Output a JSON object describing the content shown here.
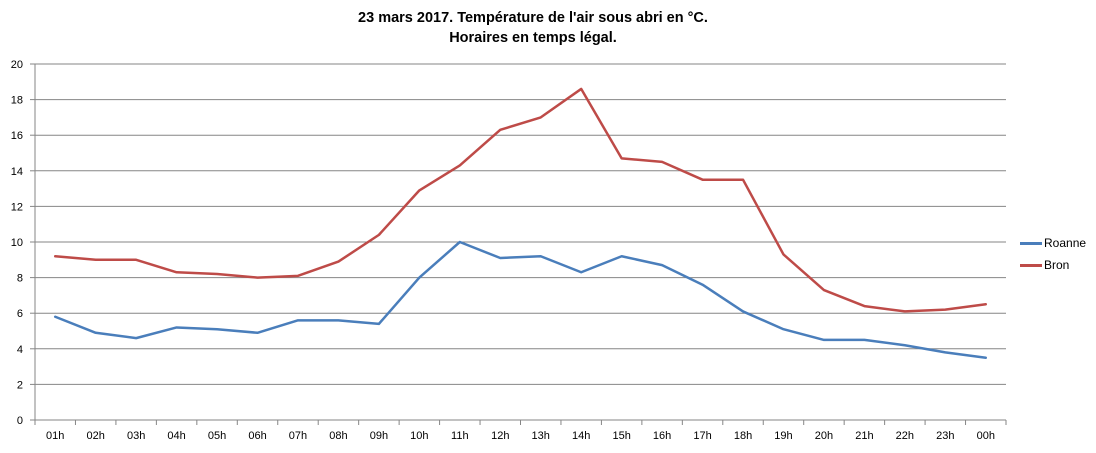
{
  "chart_data": {
    "type": "line",
    "title_line1": "23 mars 2017. Température de l'air sous abri en °C.",
    "title_line2": "Horaires en temps légal.",
    "xlabel": "",
    "ylabel": "",
    "categories": [
      "01h",
      "02h",
      "03h",
      "04h",
      "05h",
      "06h",
      "07h",
      "08h",
      "09h",
      "10h",
      "11h",
      "12h",
      "13h",
      "14h",
      "15h",
      "16h",
      "17h",
      "18h",
      "19h",
      "20h",
      "21h",
      "22h",
      "23h",
      "00h"
    ],
    "ylim": [
      0,
      20
    ],
    "yticks": [
      0,
      2,
      4,
      6,
      8,
      10,
      12,
      14,
      16,
      18,
      20
    ],
    "grid": true,
    "legend_position": "right",
    "series": [
      {
        "name": "Roanne",
        "color": "#4a7ebb",
        "values": [
          5.8,
          4.9,
          4.6,
          5.2,
          5.1,
          4.9,
          5.6,
          5.6,
          5.4,
          8.0,
          10.0,
          9.1,
          9.2,
          8.3,
          9.2,
          8.7,
          7.6,
          6.1,
          5.1,
          4.5,
          4.5,
          4.2,
          3.8,
          3.5
        ]
      },
      {
        "name": "Bron",
        "color": "#be4b48",
        "values": [
          9.2,
          9.0,
          9.0,
          8.3,
          8.2,
          8.0,
          8.1,
          8.9,
          10.4,
          12.9,
          14.3,
          16.3,
          17.0,
          18.6,
          14.7,
          14.5,
          13.5,
          13.5,
          9.3,
          7.3,
          6.4,
          6.1,
          6.2,
          6.5
        ]
      }
    ]
  }
}
